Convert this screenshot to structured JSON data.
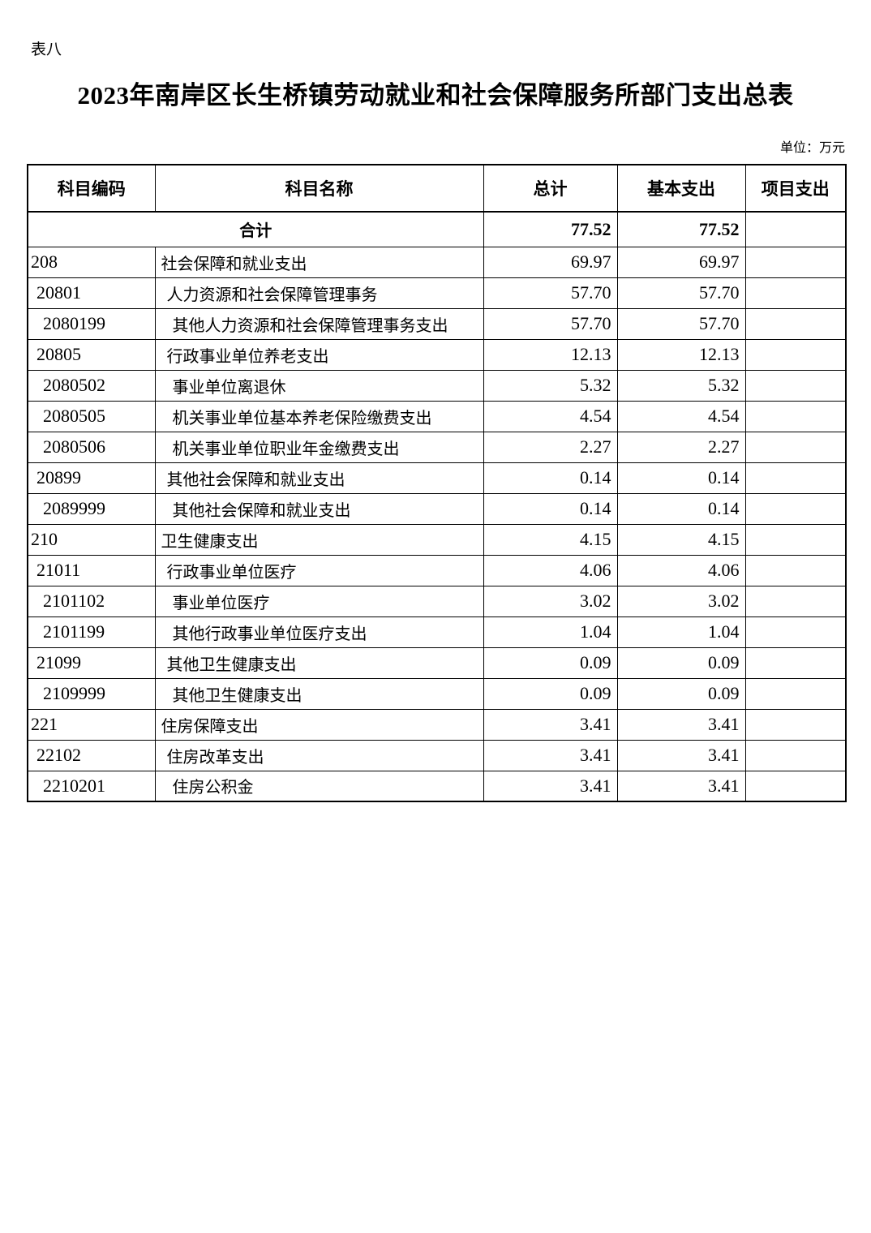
{
  "page": {
    "tag": "表八",
    "title": "2023年南岸区长生桥镇劳动就业和社会保障服务所部门支出总表",
    "unit_note": "单位：万元"
  },
  "table": {
    "columns": [
      "科目编码",
      "科目名称",
      "总计",
      "基本支出",
      "项目支出"
    ],
    "total_row": {
      "name": "合计",
      "total": "77.52",
      "basic": "77.52",
      "project": ""
    },
    "rows": [
      {
        "code": "208",
        "name": "社会保障和就业支出",
        "total": "69.97",
        "basic": "69.97",
        "project": "",
        "level": 1
      },
      {
        "code": "20801",
        "name": "人力资源和社会保障管理事务",
        "total": "57.70",
        "basic": "57.70",
        "project": "",
        "level": 2
      },
      {
        "code": "2080199",
        "name": "其他人力资源和社会保障管理事务支出",
        "total": "57.70",
        "basic": "57.70",
        "project": "",
        "level": 3
      },
      {
        "code": "20805",
        "name": "行政事业单位养老支出",
        "total": "12.13",
        "basic": "12.13",
        "project": "",
        "level": 2
      },
      {
        "code": "2080502",
        "name": "事业单位离退休",
        "total": "5.32",
        "basic": "5.32",
        "project": "",
        "level": 3
      },
      {
        "code": "2080505",
        "name": "机关事业单位基本养老保险缴费支出",
        "total": "4.54",
        "basic": "4.54",
        "project": "",
        "level": 3
      },
      {
        "code": "2080506",
        "name": "机关事业单位职业年金缴费支出",
        "total": "2.27",
        "basic": "2.27",
        "project": "",
        "level": 3
      },
      {
        "code": "20899",
        "name": "其他社会保障和就业支出",
        "total": "0.14",
        "basic": "0.14",
        "project": "",
        "level": 2
      },
      {
        "code": "2089999",
        "name": "其他社会保障和就业支出",
        "total": "0.14",
        "basic": "0.14",
        "project": "",
        "level": 3
      },
      {
        "code": "210",
        "name": "卫生健康支出",
        "total": "4.15",
        "basic": "4.15",
        "project": "",
        "level": 1
      },
      {
        "code": "21011",
        "name": "行政事业单位医疗",
        "total": "4.06",
        "basic": "4.06",
        "project": "",
        "level": 2
      },
      {
        "code": "2101102",
        "name": "事业单位医疗",
        "total": "3.02",
        "basic": "3.02",
        "project": "",
        "level": 3
      },
      {
        "code": "2101199",
        "name": "其他行政事业单位医疗支出",
        "total": "1.04",
        "basic": "1.04",
        "project": "",
        "level": 3
      },
      {
        "code": "21099",
        "name": "其他卫生健康支出",
        "total": "0.09",
        "basic": "0.09",
        "project": "",
        "level": 2
      },
      {
        "code": "2109999",
        "name": "其他卫生健康支出",
        "total": "0.09",
        "basic": "0.09",
        "project": "",
        "level": 3
      },
      {
        "code": "221",
        "name": "住房保障支出",
        "total": "3.41",
        "basic": "3.41",
        "project": "",
        "level": 1
      },
      {
        "code": "22102",
        "name": "住房改革支出",
        "total": "3.41",
        "basic": "3.41",
        "project": "",
        "level": 2
      },
      {
        "code": "2210201",
        "name": "住房公积金",
        "total": "3.41",
        "basic": "3.41",
        "project": "",
        "level": 3
      }
    ]
  }
}
